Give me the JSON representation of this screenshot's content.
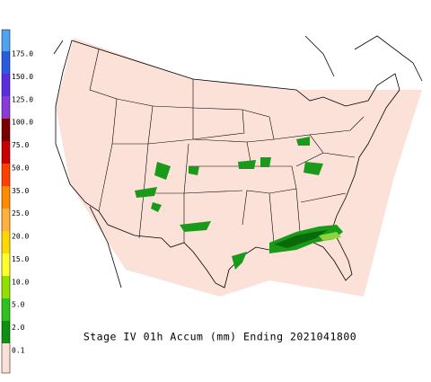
{
  "legend": {
    "labels": [
      "175.0",
      "150.0",
      "125.0",
      "100.0",
      "75.0",
      "50.0",
      "35.0",
      "25.0",
      "20.0",
      "15.0",
      "10.0",
      "5.0",
      "2.0",
      "0.1"
    ]
  },
  "caption": "Stage IV 01h Accum (mm) Ending 2021041800"
}
